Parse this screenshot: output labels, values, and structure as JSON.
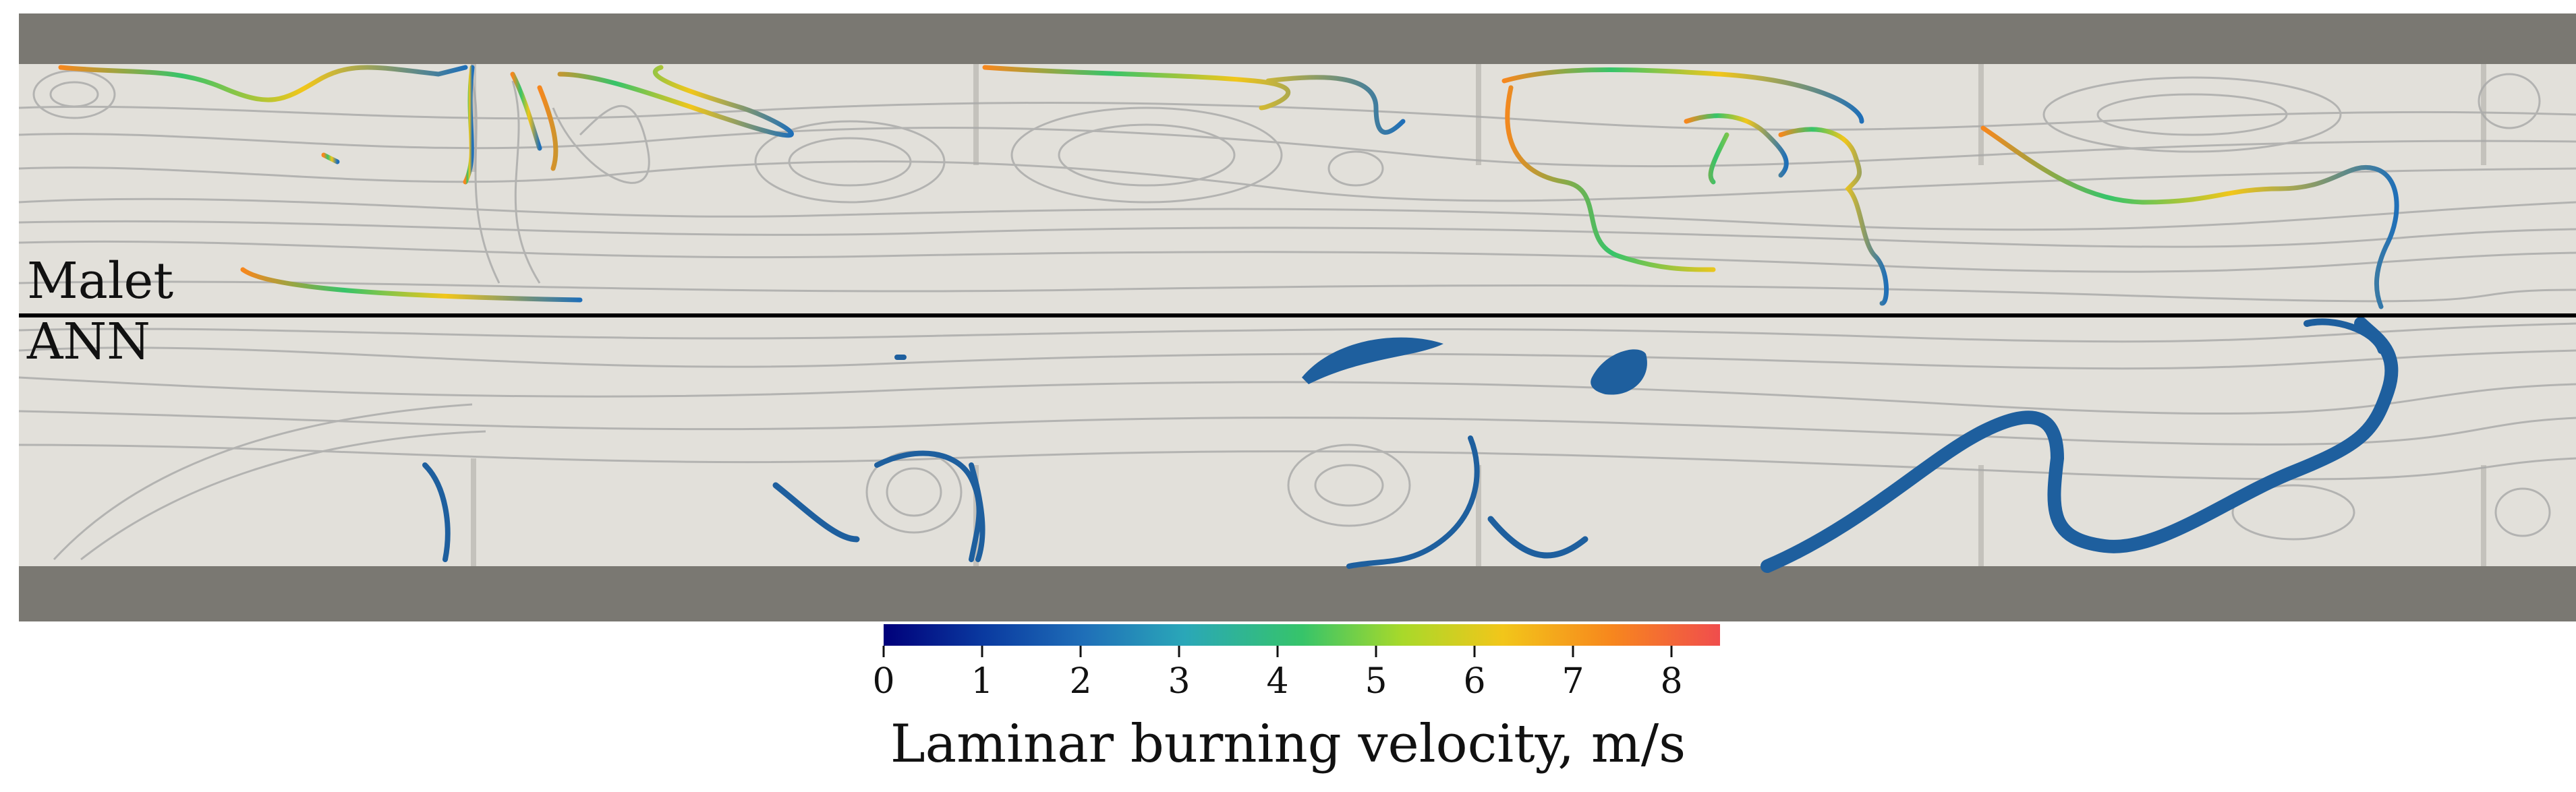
{
  "panels": {
    "top_label": "Malet",
    "bottom_label": "ANN"
  },
  "colorbar": {
    "title": "Laminar burning velocity, m/s",
    "ticks": [
      "0",
      "1",
      "2",
      "3",
      "4",
      "5",
      "6",
      "7",
      "8"
    ],
    "range": [
      0,
      8.5
    ],
    "colormap": [
      "#00007a",
      "#0a3aa0",
      "#1f6fb8",
      "#2aa7b8",
      "#36c46a",
      "#a8d92a",
      "#f2c61a",
      "#f7871d",
      "#f04d4d"
    ]
  },
  "colors": {
    "wall": "#7a7872",
    "flow_background": "#e2e0da",
    "streamline": "#a8a8a8",
    "divider": "#000000"
  }
}
